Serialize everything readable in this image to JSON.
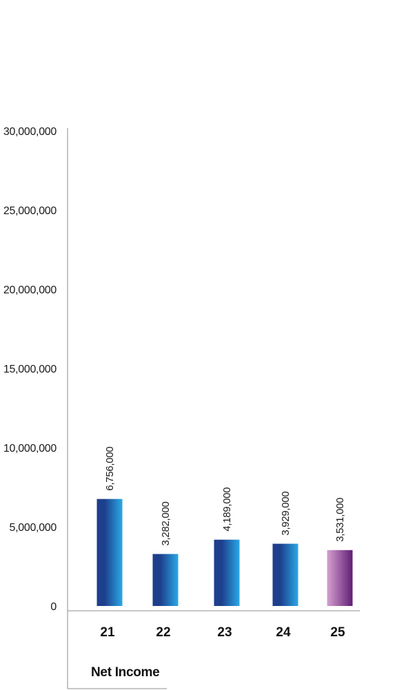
{
  "chart_data": {
    "type": "bar",
    "categories": [
      "21",
      "22",
      "23",
      "24",
      "25"
    ],
    "series": [
      {
        "values": [
          6756000,
          3282000,
          4189000,
          3929000,
          3531000
        ]
      }
    ],
    "data_labels": [
      "6,756,000",
      "3,282,000",
      "4,189,000",
      "3,929,000",
      "3,531,000"
    ],
    "ylim": [
      0,
      30000000
    ],
    "yticks": [
      0,
      5000000,
      10000000,
      15000000,
      20000000,
      25000000,
      30000000
    ],
    "ytick_labels": [
      "0",
      "5,000,000",
      "10,000,000",
      "15,000,000",
      "20,000,000",
      "25,000,000",
      "30,000,000"
    ],
    "caption": "Net Income",
    "grid": false,
    "colors": {
      "bar_dark": "#1d3f8c",
      "bar_light": "#2aa8e6",
      "highlight_dark": "#5e1f74",
      "highlight_light": "#d79fd0",
      "axis": "#8c8c8c"
    }
  }
}
